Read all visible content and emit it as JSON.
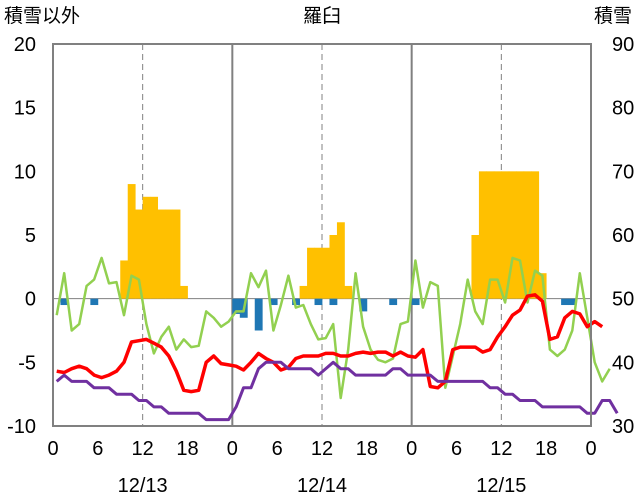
{
  "chart_data": {
    "type": "bar",
    "title": "羅臼",
    "y_left": {
      "label": "積雪以外",
      "min": -10,
      "max": 20,
      "ticks": [
        -10,
        -5,
        0,
        5,
        10,
        15,
        20
      ]
    },
    "y_right": {
      "label": "積雪",
      "min": 30,
      "max": 90,
      "ticks": [
        30,
        40,
        50,
        60,
        70,
        80,
        90
      ]
    },
    "x": {
      "hour_ticks": [
        "0",
        "6",
        "12",
        "18",
        "0",
        "6",
        "12",
        "18",
        "0",
        "6",
        "12",
        "18",
        "0"
      ],
      "date_labels": [
        "12/13",
        "12/14",
        "12/15"
      ]
    },
    "grid": {
      "day_dividers": "solid",
      "noon_lines": "dashed"
    },
    "series": [
      {
        "kind": "bar",
        "axis": "left",
        "color": "#ffc000",
        "points": [
          [
            9,
            3
          ],
          [
            10,
            9
          ],
          [
            11,
            7
          ],
          [
            12,
            8
          ],
          [
            13,
            8
          ],
          [
            14,
            7
          ],
          [
            15,
            7
          ],
          [
            16,
            7
          ],
          [
            17,
            1
          ],
          [
            33,
            1
          ],
          [
            34,
            4
          ],
          [
            35,
            4
          ],
          [
            36,
            4
          ],
          [
            37,
            5
          ],
          [
            38,
            6
          ],
          [
            39,
            1
          ],
          [
            56,
            5
          ],
          [
            57,
            10
          ],
          [
            58,
            10
          ],
          [
            59,
            10
          ],
          [
            60,
            10
          ],
          [
            61,
            10
          ],
          [
            62,
            10
          ],
          [
            63,
            10
          ],
          [
            64,
            10
          ],
          [
            65,
            2
          ]
        ]
      },
      {
        "kind": "bar",
        "axis": "left",
        "color": "#1f77b4",
        "points": [
          [
            1,
            -0.5
          ],
          [
            5,
            -0.5
          ],
          [
            24,
            -1.2
          ],
          [
            25,
            -1.5
          ],
          [
            27,
            -2.5
          ],
          [
            29,
            -0.5
          ],
          [
            32,
            -0.5
          ],
          [
            35,
            -0.5
          ],
          [
            37,
            -0.5
          ],
          [
            41,
            -1
          ],
          [
            45,
            -0.5
          ],
          [
            48,
            -0.5
          ],
          [
            68,
            -0.5
          ],
          [
            69,
            -0.5
          ]
        ]
      },
      {
        "kind": "line",
        "axis": "left",
        "color": "#92d050",
        "values": [
          -1.3,
          2,
          -2.5,
          -2,
          1,
          1.5,
          3.2,
          1.2,
          1.3,
          -1.3,
          1.8,
          1.5,
          -2,
          -4.3,
          -3,
          -2.2,
          -4,
          -3.2,
          -3.8,
          -3.7,
          -1,
          -1.5,
          -2.2,
          -1.8,
          -1,
          -1,
          2,
          0.9,
          2.2,
          -2.5,
          -0.5,
          1.8,
          -0.7,
          -0.5,
          -2,
          -3.2,
          -3.1,
          -2,
          -7.8,
          -4,
          2,
          -2.2,
          -4,
          -4.8,
          -5,
          -4.7,
          -2,
          -1.8,
          3,
          -0.7,
          1.3,
          1,
          -7,
          -4.5,
          -2,
          1.5,
          -1,
          -2,
          1.5,
          1.5,
          -0.3,
          3.2,
          3,
          -0.3,
          2.2,
          1.8,
          -4,
          -4.5,
          -4,
          -2.5,
          2,
          -1.5,
          -5,
          -6.5,
          -5.5
        ]
      },
      {
        "kind": "line",
        "axis": "left",
        "color": "#ff0000",
        "values": [
          -5.7,
          -5.8,
          -5.5,
          -5.3,
          -5.5,
          -6,
          -6.2,
          -6,
          -5.7,
          -5,
          -3.4,
          -3.3,
          -3.2,
          -3.5,
          -3.8,
          -4.5,
          -5.7,
          -7.2,
          -7.3,
          -7.2,
          -5,
          -4.5,
          -5.1,
          -5.2,
          -5.3,
          -5.6,
          -5,
          -4.3,
          -4.7,
          -5,
          -5.6,
          -5.4,
          -4.7,
          -4.5,
          -4.5,
          -4.5,
          -4.3,
          -4.3,
          -4.5,
          -4.5,
          -4.3,
          -4.2,
          -4.3,
          -4.2,
          -4.2,
          -4.5,
          -4.2,
          -4.5,
          -4.6,
          -4,
          -6.9,
          -7,
          -6.5,
          -4,
          -3.8,
          -3.8,
          -3.8,
          -4.2,
          -4,
          -3,
          -2.2,
          -1.3,
          -0.9,
          0.2,
          0.3,
          -0.2,
          -3.2,
          -3,
          -1.5,
          -1,
          -1.2,
          -2.2,
          -1.8,
          -2.2
        ]
      },
      {
        "kind": "line",
        "axis": "left",
        "color": "#7030a0",
        "values": [
          -6.5,
          -6,
          -6.5,
          -6.5,
          -6.5,
          -7,
          -7,
          -7,
          -7.5,
          -7.5,
          -7.5,
          -8,
          -8,
          -8.5,
          -8.5,
          -9,
          -9,
          -9,
          -9,
          -9,
          -9.5,
          -9.5,
          -9.5,
          -9.5,
          -8.5,
          -7,
          -7,
          -5.5,
          -5,
          -5,
          -5,
          -5.5,
          -5.5,
          -5.5,
          -5.5,
          -6,
          -5.5,
          -5,
          -5.5,
          -5.5,
          -6,
          -6,
          -6,
          -6,
          -6,
          -5.5,
          -5.5,
          -6,
          -6,
          -6,
          -6,
          -6.5,
          -6.5,
          -6.5,
          -6.5,
          -6.5,
          -6.5,
          -6.5,
          -7,
          -7,
          -7.5,
          -7.5,
          -8,
          -8,
          -8,
          -8.5,
          -8.5,
          -8.5,
          -8.5,
          -8.5,
          -8.5,
          -9,
          -9,
          -8,
          -8,
          -9
        ]
      }
    ]
  }
}
